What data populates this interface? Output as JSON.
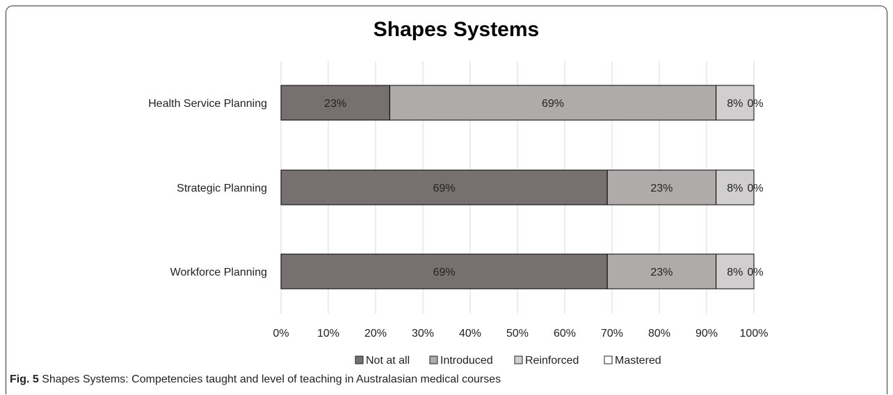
{
  "chart_data": {
    "type": "bar",
    "orientation": "horizontal",
    "stacked": true,
    "normalized": true,
    "title": "Shapes Systems",
    "categories": [
      "Health Service Planning",
      "Strategic Planning",
      "Workforce Planning"
    ],
    "series": [
      {
        "name": "Not at all",
        "values": [
          23,
          69,
          69
        ],
        "labels": [
          "23%",
          "69%",
          "69%"
        ],
        "color": "#767170"
      },
      {
        "name": "Introduced",
        "values": [
          69,
          23,
          23
        ],
        "labels": [
          "69%",
          "23%",
          "23%"
        ],
        "color": "#afabab"
      },
      {
        "name": "Reinforced",
        "values": [
          8,
          8,
          8
        ],
        "labels": [
          "8%",
          "8%",
          "8%"
        ],
        "color": "#d0cece"
      },
      {
        "name": "Mastered",
        "values": [
          0,
          0,
          0
        ],
        "labels": [
          "0%",
          "0%",
          "0%"
        ],
        "color": "#ffffff"
      }
    ],
    "xlim": [
      0,
      100
    ],
    "x_ticks": [
      "0%",
      "10%",
      "20%",
      "30%",
      "40%",
      "50%",
      "60%",
      "70%",
      "80%",
      "90%",
      "100%"
    ],
    "grid": true,
    "legend_position": "bottom"
  },
  "caption": {
    "prefix": "Fig. 5",
    "text": " Shapes Systems: Competencies taught and level of teaching in Australasian medical courses"
  }
}
